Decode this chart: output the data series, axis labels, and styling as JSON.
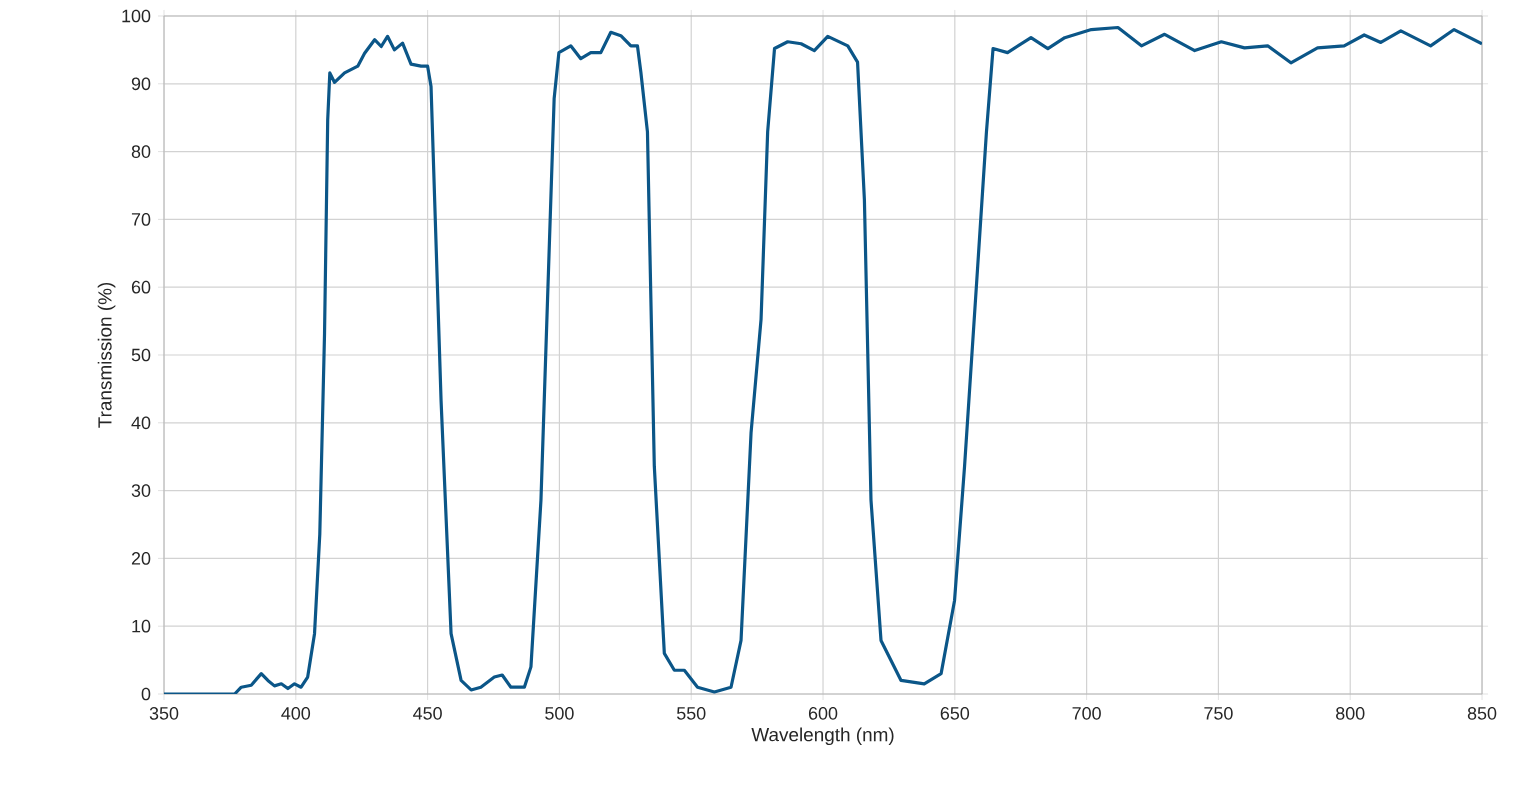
{
  "chart_data": {
    "type": "line",
    "xlabel": "Wavelength (nm)",
    "ylabel": "Transmission (%)",
    "xlim": [
      350,
      850
    ],
    "ylim": [
      0,
      100
    ],
    "xticks": [
      350,
      400,
      450,
      500,
      550,
      600,
      650,
      700,
      750,
      800,
      850
    ],
    "yticks": [
      0,
      10,
      20,
      30,
      40,
      50,
      60,
      70,
      80,
      90,
      100
    ],
    "grid": true,
    "marker": "none",
    "line_style": "solid",
    "series": [
      {
        "color": "#0b5688",
        "x": [
          350,
          376.8,
          379.3,
          383.1,
          386.9,
          389.4,
          391.9,
          394.5,
          397.0,
          399.5,
          402.0,
          404.5,
          407.1,
          409.1,
          410.9,
          412.1,
          412.9,
          414.7,
          418.5,
          423.5,
          426.1,
          429.9,
          432.4,
          434.8,
          437.4,
          440.5,
          443.7,
          447.5,
          450.0,
          451.3,
          455.1,
          458.9,
          462.7,
          466.5,
          470.2,
          475.3,
          478.3,
          481.6,
          486.7,
          489.2,
          493.0,
          495.5,
          498.0,
          499.8,
          504.3,
          508.1,
          511.9,
          515.7,
          519.5,
          523.3,
          527.1,
          529.6,
          530.9,
          533.4,
          536.0,
          539.8,
          543.6,
          547.4,
          552.4,
          558.8,
          565.1,
          568.9,
          572.7,
          576.5,
          579.0,
          581.6,
          586.6,
          591.7,
          596.7,
          601.8,
          609.4,
          613.1,
          615.7,
          618.2,
          622.0,
          629.6,
          638.4,
          644.8,
          649.9,
          653.7,
          658.7,
          662.0,
          664.5,
          670.0,
          678.9,
          685.3,
          691.7,
          701.8,
          711.9,
          720.8,
          729.6,
          741.0,
          751.1,
          759.9,
          768.7,
          777.5,
          787.6,
          797.7,
          805.3,
          811.6,
          819.2,
          830.5,
          839.4,
          850
        ],
        "values": [
          0,
          0,
          1.0,
          1.3,
          3.0,
          2.0,
          1.2,
          1.5,
          0.8,
          1.5,
          1.0,
          2.5,
          8.9,
          23.6,
          53.2,
          84.7,
          91.6,
          90.2,
          91.6,
          92.6,
          94.5,
          96.5,
          95.5,
          97.0,
          95.0,
          96.0,
          92.9,
          92.6,
          92.6,
          89.6,
          43.3,
          8.9,
          2.0,
          0.6,
          1.0,
          2.5,
          2.8,
          1.0,
          1.0,
          4.0,
          28.6,
          58.2,
          87.8,
          94.6,
          95.6,
          93.7,
          94.6,
          94.6,
          97.6,
          97.1,
          95.6,
          95.6,
          91.7,
          82.9,
          33.6,
          6.0,
          3.5,
          3.5,
          1.0,
          0.3,
          1.0,
          7.9,
          38.5,
          55.3,
          82.9,
          95.2,
          96.2,
          95.9,
          94.9,
          97.0,
          95.6,
          93.2,
          72.9,
          28.6,
          7.9,
          2.0,
          1.5,
          3.0,
          13.8,
          33.6,
          63.2,
          82.9,
          95.2,
          94.6,
          96.8,
          95.2,
          96.8,
          98.0,
          98.3,
          95.6,
          97.3,
          94.9,
          96.2,
          95.3,
          95.6,
          93.1,
          95.3,
          95.6,
          97.2,
          96.1,
          97.8,
          95.6,
          98.0,
          95.9
        ]
      }
    ]
  }
}
